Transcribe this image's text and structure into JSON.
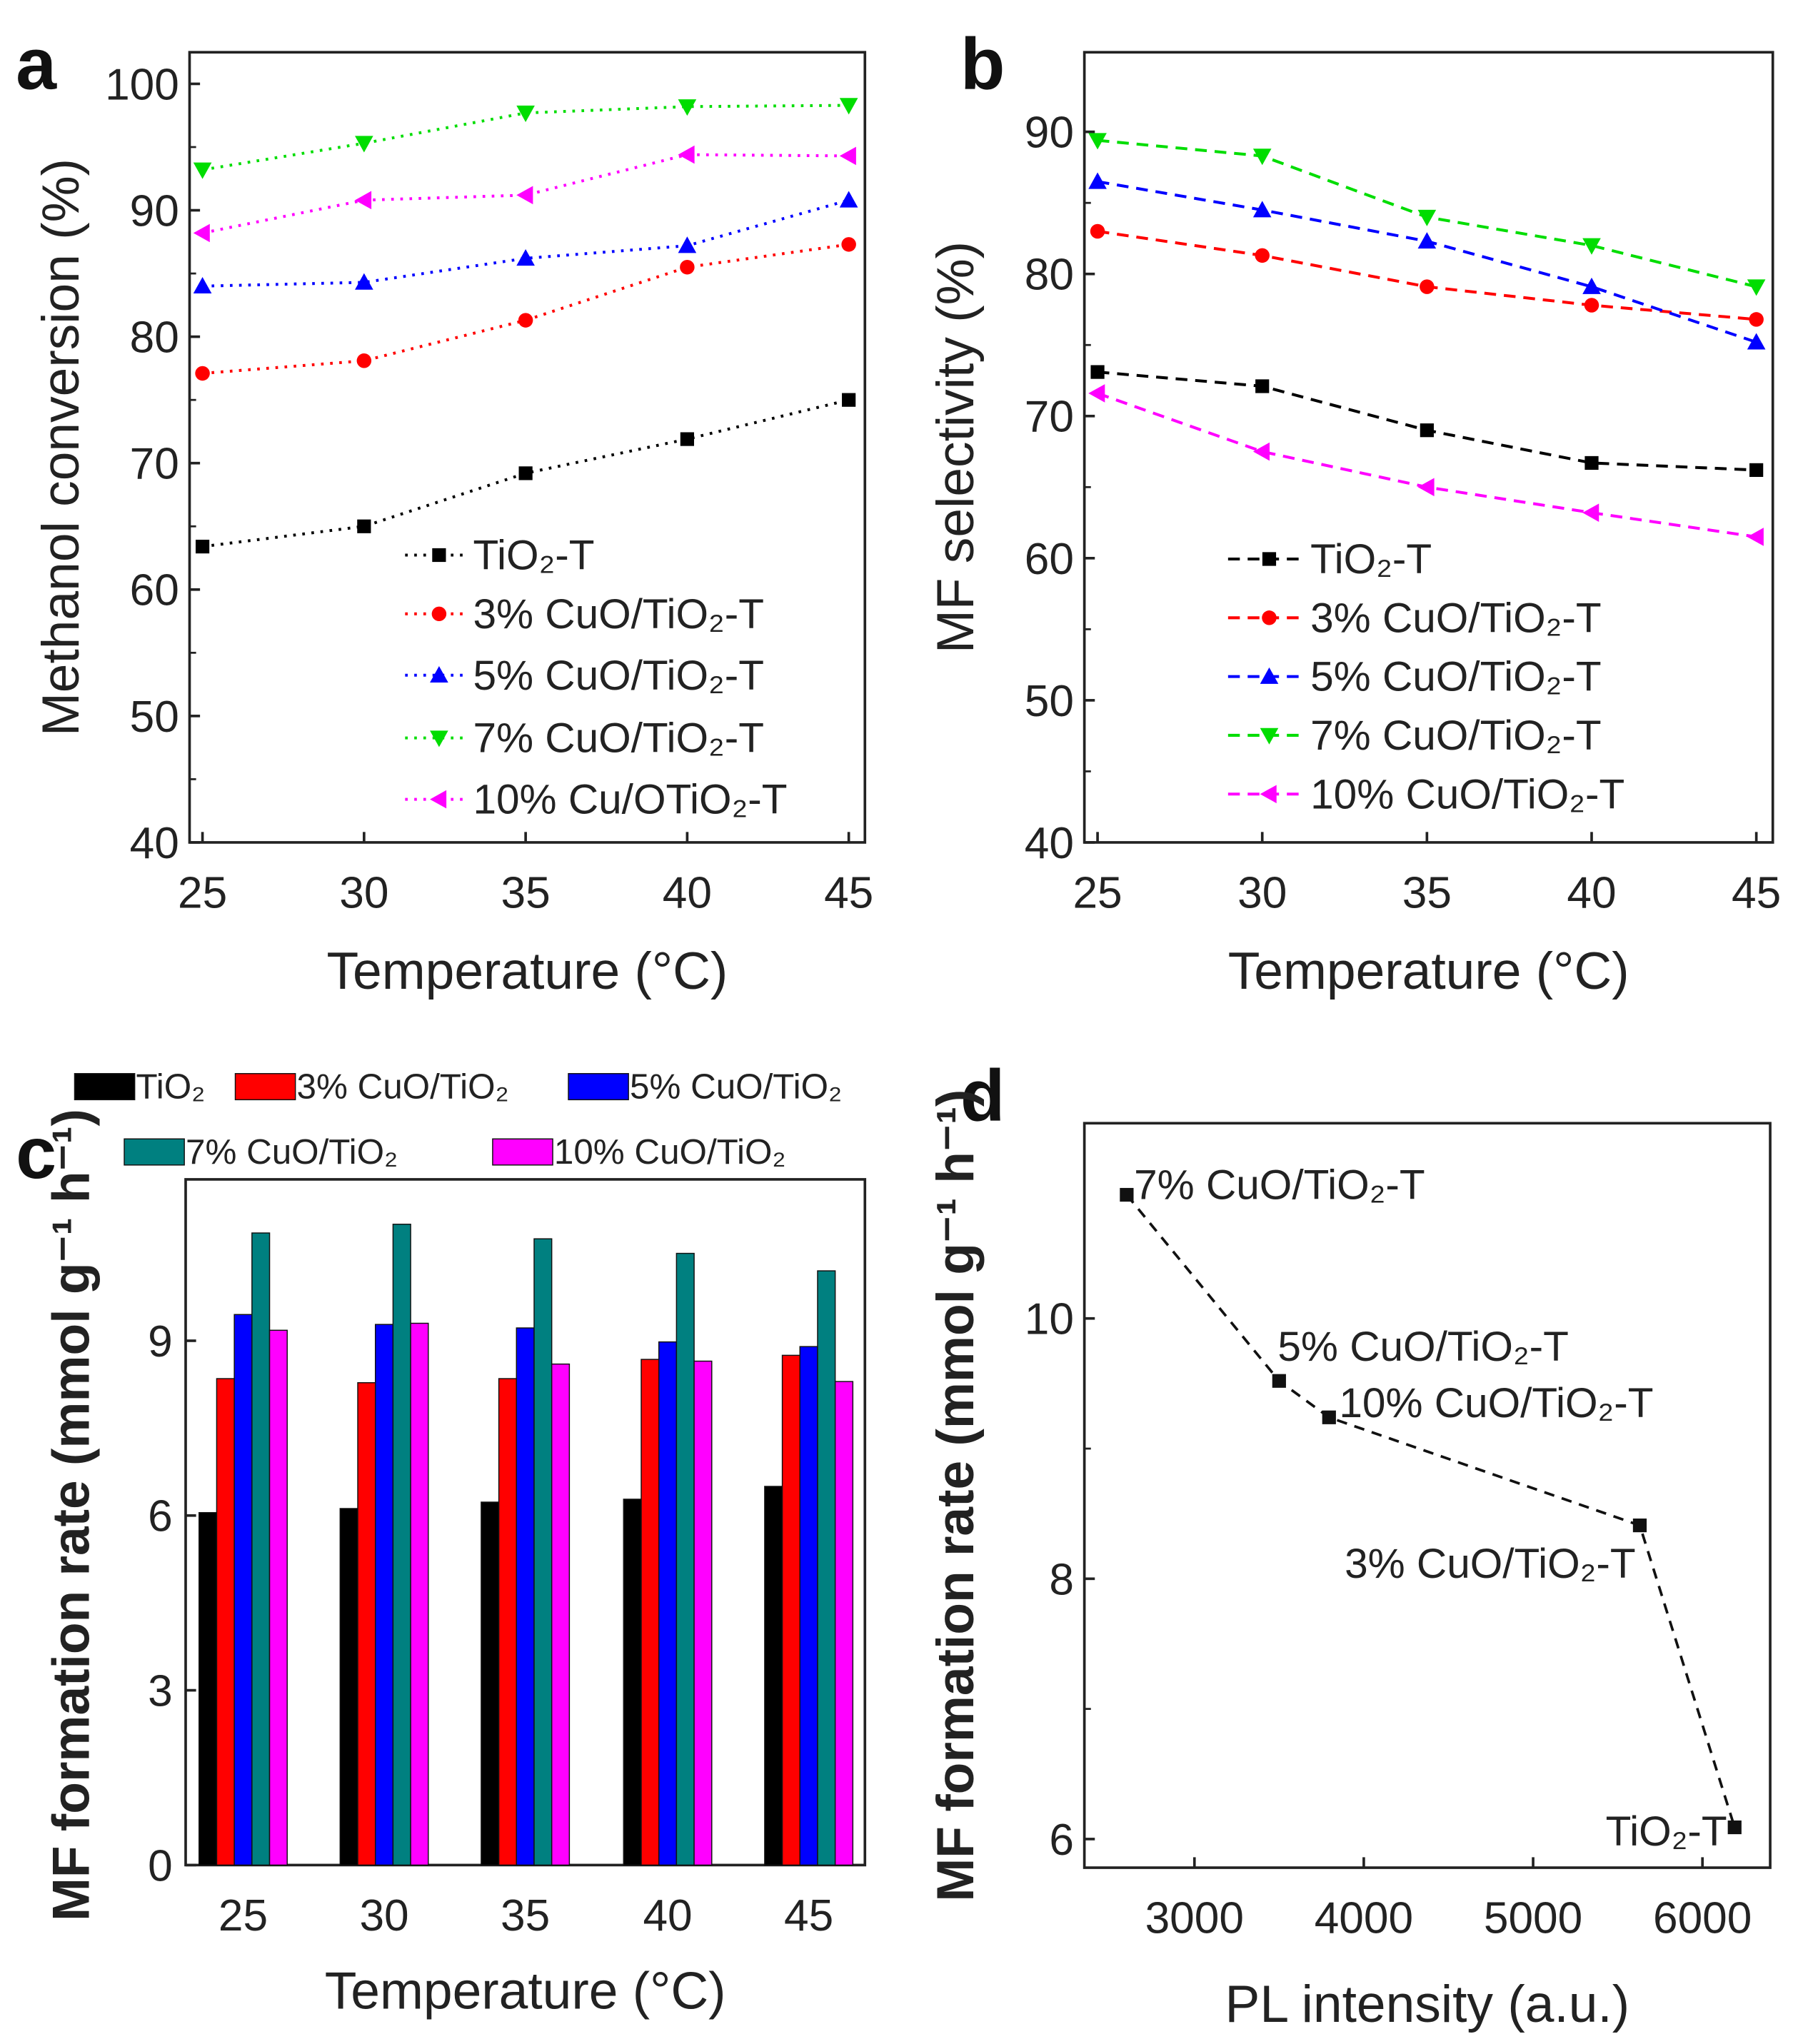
{
  "chart_data": [
    {
      "panel": "a",
      "type": "line",
      "line_style": "dotted",
      "xlabel": "Temperature (°C)",
      "ylabel": "Methanol conversion (%)",
      "x": [
        25,
        30,
        35,
        40,
        45
      ],
      "xticks": [
        25,
        30,
        35,
        40,
        45
      ],
      "yticks": [
        40,
        50,
        60,
        70,
        80,
        90,
        100
      ],
      "xlim": [
        24.6,
        45.5
      ],
      "ylim": [
        40,
        102.5
      ],
      "legend": "bottom-right",
      "series": [
        {
          "name": "TiO₂-T",
          "color": "#000000",
          "marker": "square",
          "values": [
            63.4,
            65.0,
            69.2,
            71.9,
            75.0
          ]
        },
        {
          "name": "3% CuO/TiO₂-T",
          "color": "#ff0000",
          "marker": "circle",
          "values": [
            77.1,
            78.1,
            81.3,
            85.5,
            87.3
          ]
        },
        {
          "name": "5% CuO/TiO₂-T",
          "color": "#0000ff",
          "marker": "triangle-up",
          "values": [
            84.0,
            84.3,
            86.2,
            87.2,
            90.8
          ]
        },
        {
          "name": "7% CuO/TiO₂-T",
          "color": "#00dd00",
          "marker": "triangle-down",
          "values": [
            93.2,
            95.3,
            97.7,
            98.2,
            98.3
          ]
        },
        {
          "name": "10% Cu/OTiO₂-T",
          "color": "#ff00ff",
          "marker": "triangle-left",
          "values": [
            88.2,
            90.8,
            91.2,
            94.4,
            94.3
          ]
        }
      ]
    },
    {
      "panel": "b",
      "type": "line",
      "line_style": "dashed",
      "xlabel": "Temperature (°C)",
      "ylabel": "MF selectivity (%)",
      "x": [
        25,
        30,
        35,
        40,
        45
      ],
      "xticks": [
        25,
        30,
        35,
        40,
        45
      ],
      "yticks": [
        40,
        50,
        60,
        70,
        80,
        90
      ],
      "xlim": [
        24.6,
        45.5
      ],
      "ylim": [
        40,
        95.6
      ],
      "legend": "bottom-left",
      "series": [
        {
          "name": "TiO₂-T",
          "color": "#000000",
          "marker": "square",
          "values": [
            73.1,
            72.1,
            69.0,
            66.7,
            66.2
          ]
        },
        {
          "name": "3% CuO/TiO₂-T",
          "color": "#ff0000",
          "marker": "circle",
          "values": [
            83.0,
            81.3,
            79.1,
            77.8,
            76.8
          ]
        },
        {
          "name": "5% CuO/TiO₂-T",
          "color": "#0000ff",
          "marker": "triangle-up",
          "values": [
            86.5,
            84.5,
            82.3,
            79.1,
            75.2
          ]
        },
        {
          "name": "7% CuO/TiO₂-T",
          "color": "#00dd00",
          "marker": "triangle-down",
          "values": [
            89.4,
            88.3,
            84.0,
            82.0,
            79.1
          ]
        },
        {
          "name": "10% CuO/TiO₂-T",
          "color": "#ff00ff",
          "marker": "triangle-left",
          "values": [
            71.6,
            67.5,
            65.0,
            63.2,
            61.5
          ]
        }
      ]
    },
    {
      "panel": "c",
      "type": "bar",
      "xlabel": "Temperature (°C)",
      "ylabel": "MF formation rate (mmol g⁻¹ h⁻¹)",
      "categories": [
        "25",
        "30",
        "35",
        "40",
        "45"
      ],
      "yticks": [
        0,
        3,
        6,
        9
      ],
      "ylim": [
        0,
        11.77
      ],
      "legend": "top",
      "series": [
        {
          "name": "TiO₂",
          "color": "#000000",
          "values": [
            6.05,
            6.12,
            6.23,
            6.28,
            6.5
          ]
        },
        {
          "name": "3% CuO/TiO₂",
          "color": "#ff0000",
          "values": [
            8.35,
            8.28,
            8.35,
            8.68,
            8.75
          ]
        },
        {
          "name": "5% CuO/TiO₂",
          "color": "#0000ff",
          "values": [
            9.45,
            9.28,
            9.22,
            8.98,
            8.9
          ]
        },
        {
          "name": "7% CuO/TiO₂",
          "color": "#008080",
          "values": [
            10.85,
            11.0,
            10.75,
            10.5,
            10.2
          ]
        },
        {
          "name": "10% CuO/TiO₂",
          "color": "#ff00ff",
          "values": [
            9.18,
            9.3,
            8.6,
            8.65,
            8.3
          ]
        }
      ]
    },
    {
      "panel": "d",
      "type": "scatter",
      "xlabel": "PL intensity (a.u.)",
      "ylabel": "MF formation rate (mmol g⁻¹ h⁻¹)",
      "xticks": [
        3000,
        4000,
        5000,
        6000
      ],
      "yticks": [
        6,
        8,
        10
      ],
      "xlim": [
        2350,
        6400
      ],
      "ylim": [
        5.78,
        11.5
      ],
      "points": [
        {
          "label": "7% CuO/TiO₂-T",
          "x": 2600,
          "y": 10.95
        },
        {
          "label": "5% CuO/TiO₂-T",
          "x": 3500,
          "y": 9.52
        },
        {
          "label": "10% CuO/TiO₂-T",
          "x": 3795,
          "y": 9.24
        },
        {
          "label": "3% CuO/TiO₂-T",
          "x": 5630,
          "y": 8.41
        },
        {
          "label": "TiO₂-T",
          "x": 6190,
          "y": 6.09
        }
      ]
    }
  ],
  "panel_labels": [
    "a",
    "b",
    "c",
    "d"
  ]
}
